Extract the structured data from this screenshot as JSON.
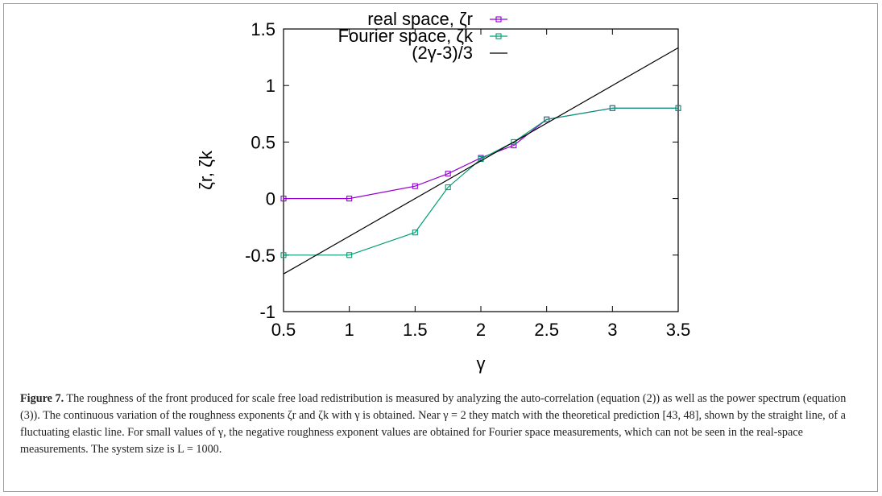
{
  "chart_data": {
    "type": "line",
    "xlabel": "γ",
    "ylabel": "ζr, ζk",
    "xlim": [
      0.5,
      3.5
    ],
    "ylim": [
      -1,
      1.5
    ],
    "x_ticks": [
      "0.5",
      "1",
      "1.5",
      "2",
      "2.5",
      "3",
      "3.5"
    ],
    "y_ticks": [
      "-1",
      "-0.5",
      "0",
      "0.5",
      "1",
      "1.5"
    ],
    "grid": false,
    "legend_position": "top-right",
    "series": [
      {
        "name": "real space, ζr",
        "color": "#9400d3",
        "marker": "square-open",
        "x": [
          0.5,
          1.0,
          1.5,
          1.75,
          2.0,
          2.25,
          2.5,
          3.0,
          3.5
        ],
        "y": [
          0.0,
          0.0,
          0.11,
          0.22,
          0.36,
          0.47,
          0.7,
          0.8,
          0.8
        ]
      },
      {
        "name": "Fourier space, ζk",
        "color": "#009e73",
        "marker": "square-open",
        "x": [
          0.5,
          1.0,
          1.5,
          1.75,
          2.0,
          2.25,
          2.5,
          3.0,
          3.5
        ],
        "y": [
          -0.5,
          -0.5,
          -0.3,
          0.1,
          0.35,
          0.5,
          0.7,
          0.8,
          0.8
        ]
      },
      {
        "name": "(2γ-3)/3",
        "color": "#000000",
        "marker": "none",
        "x": [
          0.5,
          3.5
        ],
        "y": [
          -0.6667,
          1.3333
        ]
      }
    ]
  },
  "caption": {
    "label": "Figure 7.",
    "text": " The roughness of the front produced for scale free load redistribution is measured by analyzing the auto-correlation (equation (2)) as well as the power spectrum (equation (3)). The continuous variation of the roughness exponents ζr and ζk with γ is obtained. Near γ = 2 they match with the theoretical prediction [43, 48], shown by the straight line, of a fluctuating elastic line. For small values of γ, the negative roughness exponent values are obtained for Fourier space measurements, which can not be seen in the real-space measurements. The system size is L = 1000."
  }
}
